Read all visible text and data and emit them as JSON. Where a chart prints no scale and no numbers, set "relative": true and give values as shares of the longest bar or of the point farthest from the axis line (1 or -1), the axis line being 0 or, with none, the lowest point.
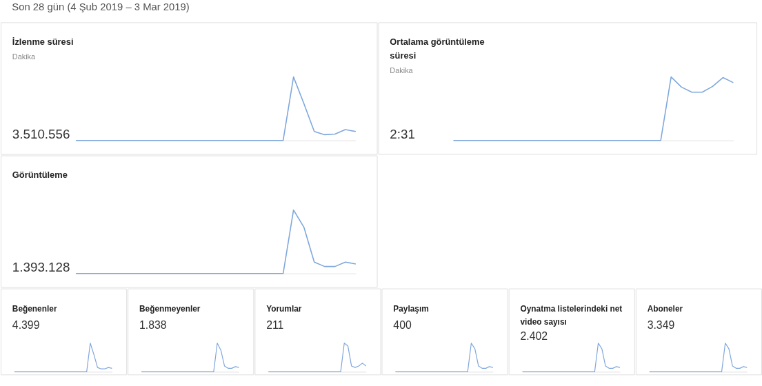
{
  "chart_data": [
    {
      "type": "line",
      "title": "İzlenme süresi",
      "subtitle": "Dakika",
      "annotations": [
        "3.510.556"
      ],
      "relative": true,
      "categories": [
        null,
        null,
        null,
        null,
        null,
        null,
        null,
        null,
        null,
        null,
        null,
        null,
        null,
        null,
        null,
        null,
        null,
        null,
        null,
        null,
        null,
        null,
        null,
        null,
        null,
        null,
        null,
        null
      ],
      "series": [
        {
          "color": "#7fa7dc",
          "values": [
            0,
            0,
            0,
            0,
            0,
            0,
            0,
            0,
            0,
            0,
            0,
            0,
            0,
            0,
            0,
            0,
            0,
            0,
            0,
            0,
            0,
            1,
            0.58,
            0.14,
            0.09,
            0.1,
            0.17,
            0.14
          ]
        }
      ]
    },
    {
      "type": "line",
      "title": "Ortalama görüntüleme süresi",
      "subtitle": "Dakika",
      "annotations": [
        "2:31"
      ],
      "relative": true,
      "categories": [
        null,
        null,
        null,
        null,
        null,
        null,
        null,
        null,
        null,
        null,
        null,
        null,
        null,
        null,
        null,
        null,
        null,
        null,
        null,
        null,
        null,
        null,
        null,
        null,
        null,
        null,
        null,
        null
      ],
      "series": [
        {
          "color": "#7fa7dc",
          "values": [
            0,
            0,
            0,
            0,
            0,
            0,
            0,
            0,
            0,
            0,
            0,
            0,
            0,
            0,
            0,
            0,
            0,
            0,
            0,
            0,
            0,
            1,
            0.84,
            0.76,
            0.76,
            0.85,
            0.99,
            0.91
          ]
        }
      ]
    },
    {
      "type": "line",
      "title": "Görüntüleme",
      "annotations": [
        "1.393.128"
      ],
      "relative": true,
      "categories": [
        null,
        null,
        null,
        null,
        null,
        null,
        null,
        null,
        null,
        null,
        null,
        null,
        null,
        null,
        null,
        null,
        null,
        null,
        null,
        null,
        null,
        null,
        null,
        null,
        null,
        null,
        null,
        null
      ],
      "series": [
        {
          "color": "#7fa7dc",
          "values": [
            0,
            0,
            0,
            0,
            0,
            0,
            0,
            0,
            0,
            0,
            0,
            0,
            0,
            0,
            0,
            0,
            0,
            0,
            0,
            0,
            0,
            1,
            0.73,
            0.18,
            0.11,
            0.11,
            0.18,
            0.15
          ]
        }
      ]
    },
    {
      "type": "line",
      "title": "Beğenenler",
      "annotations": [
        "4.399"
      ],
      "relative": true,
      "categories": [
        null,
        null,
        null,
        null,
        null,
        null,
        null,
        null,
        null,
        null,
        null,
        null,
        null,
        null,
        null,
        null,
        null,
        null,
        null,
        null,
        null,
        null,
        null,
        null,
        null,
        null,
        null,
        null
      ],
      "series": [
        {
          "color": "#7fa7dc",
          "values": [
            0,
            0,
            0,
            0,
            0,
            0,
            0,
            0,
            0,
            0,
            0,
            0,
            0,
            0,
            0,
            0,
            0,
            0,
            0,
            0,
            0,
            1,
            0.6,
            0.15,
            0.1,
            0.1,
            0.15,
            0.12
          ]
        }
      ]
    },
    {
      "type": "line",
      "title": "Beğenmeyenler",
      "annotations": [
        "1.838"
      ],
      "relative": true,
      "categories": [
        null,
        null,
        null,
        null,
        null,
        null,
        null,
        null,
        null,
        null,
        null,
        null,
        null,
        null,
        null,
        null,
        null,
        null,
        null,
        null,
        null,
        null,
        null,
        null,
        null,
        null,
        null,
        null
      ],
      "series": [
        {
          "color": "#7fa7dc",
          "values": [
            0,
            0,
            0,
            0,
            0,
            0,
            0,
            0,
            0,
            0,
            0,
            0,
            0,
            0,
            0,
            0,
            0,
            0,
            0,
            0,
            0,
            1,
            0.75,
            0.2,
            0.12,
            0.12,
            0.18,
            0.15
          ]
        }
      ]
    },
    {
      "type": "line",
      "title": "Yorumlar",
      "annotations": [
        "211"
      ],
      "relative": true,
      "categories": [
        null,
        null,
        null,
        null,
        null,
        null,
        null,
        null,
        null,
        null,
        null,
        null,
        null,
        null,
        null,
        null,
        null,
        null,
        null,
        null,
        null,
        null,
        null,
        null,
        null,
        null,
        null,
        null
      ],
      "series": [
        {
          "color": "#7fa7dc",
          "values": [
            0,
            0,
            0,
            0,
            0,
            0,
            0,
            0,
            0,
            0,
            0,
            0,
            0,
            0,
            0,
            0,
            0,
            0,
            0,
            0,
            0,
            1,
            0.9,
            0.2,
            0.15,
            0.2,
            0.3,
            0.2
          ]
        }
      ]
    },
    {
      "type": "line",
      "title": "Paylaşım",
      "annotations": [
        "400"
      ],
      "relative": true,
      "categories": [
        null,
        null,
        null,
        null,
        null,
        null,
        null,
        null,
        null,
        null,
        null,
        null,
        null,
        null,
        null,
        null,
        null,
        null,
        null,
        null,
        null,
        null,
        null,
        null,
        null,
        null,
        null,
        null
      ],
      "series": [
        {
          "color": "#7fa7dc",
          "values": [
            0,
            0,
            0,
            0,
            0,
            0,
            0,
            0,
            0,
            0,
            0,
            0,
            0,
            0,
            0,
            0,
            0,
            0,
            0,
            0,
            0,
            1,
            0.8,
            0.2,
            0.12,
            0.12,
            0.18,
            0.15
          ]
        }
      ]
    },
    {
      "type": "line",
      "title": "Oynatma listelerindeki net video sayısı",
      "annotations": [
        "2.402"
      ],
      "relative": true,
      "categories": [
        null,
        null,
        null,
        null,
        null,
        null,
        null,
        null,
        null,
        null,
        null,
        null,
        null,
        null,
        null,
        null,
        null,
        null,
        null,
        null,
        null,
        null,
        null,
        null,
        null,
        null,
        null,
        null
      ],
      "series": [
        {
          "color": "#7fa7dc",
          "values": [
            0,
            0,
            0,
            0,
            0,
            0,
            0,
            0,
            0,
            0,
            0,
            0,
            0,
            0,
            0,
            0,
            0,
            0,
            0,
            0,
            0,
            1,
            0.8,
            0.2,
            0.12,
            0.12,
            0.18,
            0.15
          ]
        }
      ]
    },
    {
      "type": "line",
      "title": "Aboneler",
      "annotations": [
        "3.349"
      ],
      "relative": true,
      "categories": [
        null,
        null,
        null,
        null,
        null,
        null,
        null,
        null,
        null,
        null,
        null,
        null,
        null,
        null,
        null,
        null,
        null,
        null,
        null,
        null,
        null,
        null,
        null,
        null,
        null,
        null,
        null,
        null
      ],
      "series": [
        {
          "color": "#7fa7dc",
          "values": [
            0,
            0,
            0,
            0,
            0,
            0,
            0,
            0,
            0,
            0,
            0,
            0,
            0,
            0,
            0,
            0,
            0,
            0,
            0,
            0,
            0,
            1,
            0.8,
            0.2,
            0.12,
            0.12,
            0.18,
            0.15
          ]
        }
      ]
    },
    {
      "type": "other",
      "title": "Son 28 gün (4 Şub 2019 – 3 Mar 2019)"
    }
  ]
}
